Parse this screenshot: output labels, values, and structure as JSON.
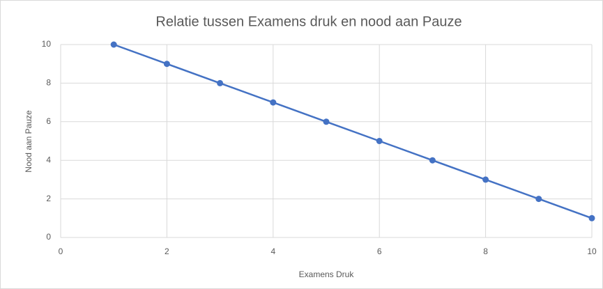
{
  "chart_data": {
    "type": "scatter",
    "title": "Relatie tussen Examens druk en nood aan Pauze",
    "x_label": "Examens Druk",
    "y_label": "Nood aan Pauze",
    "series": [
      {
        "name": "Nood aan Pauze",
        "color": "#4472c4",
        "x": [
          1,
          2,
          3,
          4,
          5,
          6,
          7,
          8,
          9,
          10
        ],
        "values": [
          10,
          9,
          8,
          7,
          6,
          5,
          4,
          3,
          2,
          1
        ]
      }
    ],
    "xlim": [
      0,
      10
    ],
    "xticks": [
      0,
      2,
      4,
      6,
      8,
      10
    ],
    "ylim": [
      0,
      10
    ],
    "yticks": [
      0,
      2,
      4,
      6,
      8,
      10
    ],
    "grid": true,
    "lines": true
  }
}
